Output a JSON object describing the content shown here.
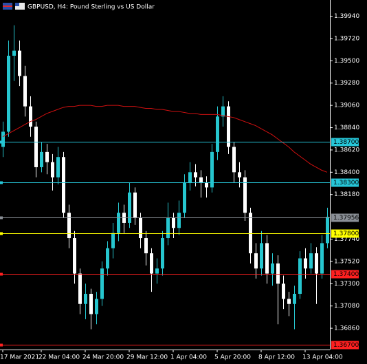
{
  "chart_data": {
    "type": "candlestick",
    "title": "GBPUSD, H4:  Pound Sterling vs US Dollar",
    "categories": [
      "17 Mar 2021",
      null,
      null,
      null,
      null,
      null,
      null,
      "22 Mar 04:00",
      null,
      null,
      null,
      null,
      null,
      null,
      null,
      "24 Mar 20:00",
      null,
      null,
      null,
      null,
      null,
      null,
      null,
      "29 Mar 12:00",
      null,
      null,
      null,
      null,
      null,
      null,
      null,
      "1 Apr 04:00",
      null,
      null,
      null,
      null,
      null,
      null,
      null,
      "5 Apr 20:00",
      null,
      null,
      null,
      null,
      null,
      null,
      null,
      "8 Apr 12:00",
      null,
      null,
      null,
      null,
      null,
      null,
      null,
      "13 Apr 04:00",
      null,
      null,
      null,
      null
    ],
    "open": [
      1.3865,
      1.388,
      1.3955,
      1.396,
      1.3935,
      1.3905,
      1.3885,
      1.3845,
      1.386,
      1.385,
      1.3835,
      1.3855,
      1.38,
      1.3775,
      1.374,
      1.371,
      1.372,
      1.37,
      1.3715,
      1.3745,
      1.3765,
      1.378,
      1.38,
      1.379,
      1.382,
      1.3795,
      1.3775,
      1.376,
      1.374,
      1.3745,
      1.3775,
      1.3795,
      1.3785,
      1.38,
      1.383,
      1.384,
      1.3835,
      1.383,
      1.3825,
      1.386,
      1.3895,
      1.3905,
      1.3865,
      1.384,
      1.3835,
      1.38,
      1.376,
      1.3745,
      1.377,
      1.374,
      1.375,
      1.373,
      1.3715,
      1.371,
      1.372,
      1.3755,
      1.3745,
      1.376,
      1.374,
      1.377
    ],
    "high": [
      1.389,
      1.397,
      1.3985,
      1.397,
      1.3945,
      1.3915,
      1.389,
      1.387,
      1.3868,
      1.3858,
      1.3865,
      1.386,
      1.3808,
      1.3782,
      1.3745,
      1.373,
      1.3725,
      1.3722,
      1.3752,
      1.3772,
      1.379,
      1.381,
      1.3808,
      1.383,
      1.3825,
      1.38,
      1.3782,
      1.3765,
      1.3755,
      1.3782,
      1.381,
      1.38,
      1.3812,
      1.3838,
      1.385,
      1.3848,
      1.3842,
      1.3836,
      1.3868,
      1.3905,
      1.3915,
      1.391,
      1.387,
      1.385,
      1.3842,
      1.3805,
      1.377,
      1.3782,
      1.3778,
      1.376,
      1.3758,
      1.3738,
      1.3722,
      1.3728,
      1.3762,
      1.3765,
      1.377,
      1.3766,
      1.3778,
      1.3805
    ],
    "low": [
      1.3855,
      1.3875,
      1.393,
      1.3925,
      1.3895,
      1.3875,
      1.3835,
      1.384,
      1.3838,
      1.3822,
      1.3828,
      1.3795,
      1.3765,
      1.373,
      1.37,
      1.3695,
      1.3685,
      1.369,
      1.3708,
      1.3738,
      1.3755,
      1.3772,
      1.378,
      1.3785,
      1.3788,
      1.3765,
      1.3748,
      1.3722,
      1.373,
      1.3738,
      1.3768,
      1.3775,
      1.3778,
      1.3795,
      1.3822,
      1.3826,
      1.3815,
      1.3815,
      1.382,
      1.3852,
      1.3885,
      1.3858,
      1.383,
      1.3825,
      1.3792,
      1.375,
      1.3735,
      1.3738,
      1.373,
      1.3728,
      1.369,
      1.3705,
      1.3698,
      1.3685,
      1.3715,
      1.3735,
      1.374,
      1.371,
      1.3735,
      1.3765
    ],
    "close": [
      1.388,
      1.3955,
      1.396,
      1.3935,
      1.3905,
      1.3885,
      1.3845,
      1.386,
      1.385,
      1.3835,
      1.3855,
      1.38,
      1.3775,
      1.374,
      1.371,
      1.372,
      1.37,
      1.3715,
      1.3745,
      1.3765,
      1.378,
      1.38,
      1.379,
      1.382,
      1.3795,
      1.3775,
      1.376,
      1.374,
      1.3745,
      1.3775,
      1.3795,
      1.3785,
      1.38,
      1.383,
      1.384,
      1.3835,
      1.383,
      1.3825,
      1.386,
      1.3895,
      1.3905,
      1.3865,
      1.384,
      1.3835,
      1.38,
      1.376,
      1.3745,
      1.377,
      1.374,
      1.375,
      1.373,
      1.3715,
      1.371,
      1.372,
      1.3755,
      1.3745,
      1.376,
      1.374,
      1.377,
      1.3796
    ],
    "up_color": "#26c6cf",
    "down_color": "#ffffff",
    "ma": {
      "color": "#d01010",
      "values": [
        1.3875,
        1.3878,
        1.3881,
        1.3884,
        1.3887,
        1.389,
        1.3892,
        1.3895,
        1.3898,
        1.39,
        1.3902,
        1.3904,
        1.3905,
        1.3905,
        1.3906,
        1.3906,
        1.3906,
        1.3905,
        1.3905,
        1.3906,
        1.3906,
        1.3906,
        1.3905,
        1.3905,
        1.3905,
        1.3904,
        1.3903,
        1.3903,
        1.3902,
        1.3902,
        1.3901,
        1.39,
        1.39,
        1.3899,
        1.3898,
        1.3898,
        1.3897,
        1.3897,
        1.3897,
        1.3897,
        1.3896,
        1.3895,
        1.3894,
        1.3892,
        1.389,
        1.3888,
        1.3886,
        1.3883,
        1.388,
        1.3877,
        1.3873,
        1.3869,
        1.3865,
        1.386,
        1.3856,
        1.3852,
        1.3848,
        1.3845,
        1.3842,
        1.384
      ]
    },
    "ylim": [
      1.3665,
      1.401
    ],
    "yticks": [
      {
        "value": 1.3994,
        "label": "1.39940"
      },
      {
        "value": 1.3972,
        "label": "1.39720"
      },
      {
        "value": 1.395,
        "label": "1.39500"
      },
      {
        "value": 1.3928,
        "label": "1.39280"
      },
      {
        "value": 1.3906,
        "label": "1.39060"
      },
      {
        "value": 1.3884,
        "label": "1.38840"
      },
      {
        "value": 1.3862,
        "label": "1.38620"
      },
      {
        "value": 1.384,
        "label": "1.38400"
      },
      {
        "value": 1.3818,
        "label": "1.38180"
      },
      {
        "value": 1.3774,
        "label": "1.37740"
      },
      {
        "value": 1.3752,
        "label": "1.37520"
      },
      {
        "value": 1.373,
        "label": "1.37300"
      },
      {
        "value": 1.3708,
        "label": "1.37080"
      },
      {
        "value": 1.3686,
        "label": "1.36860"
      }
    ],
    "levels": [
      {
        "value": 1.387,
        "label": "1.38700",
        "color": "#26c6d8"
      },
      {
        "value": 1.383,
        "label": "1.38300",
        "color": "#26c6d8"
      },
      {
        "value": 1.37956,
        "label": "1.37956",
        "color": "#8a8f96"
      },
      {
        "value": 1.378,
        "label": "1.37800",
        "color": "#ffff00"
      },
      {
        "value": 1.374,
        "label": "1.37400",
        "color": "#ff2020"
      },
      {
        "value": 1.367,
        "label": "1.36700",
        "color": "#ff2020"
      }
    ]
  }
}
